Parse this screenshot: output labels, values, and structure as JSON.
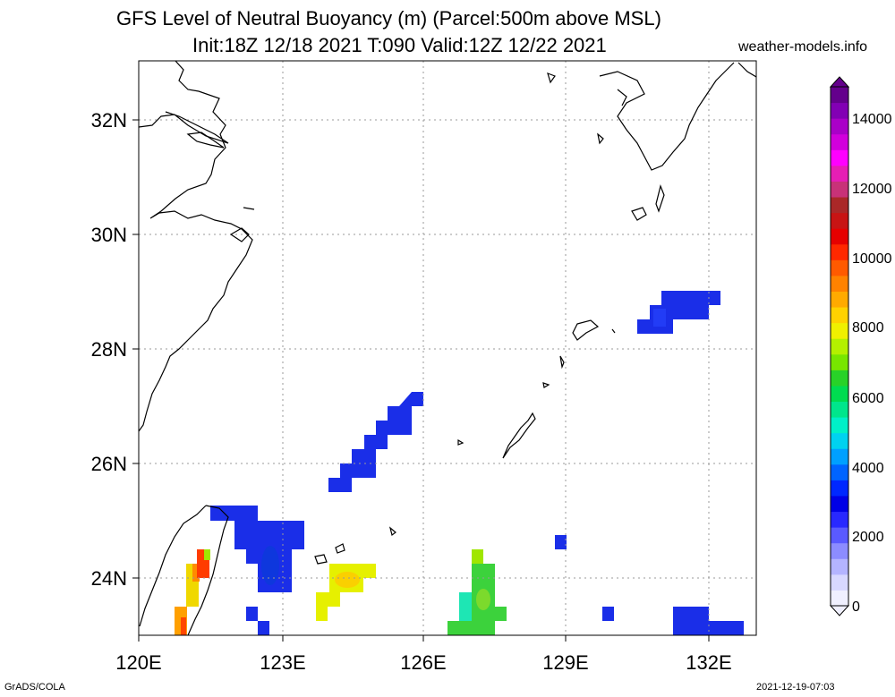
{
  "title_line1": "GFS Level of Neutral Buoyancy (m) (Parcel:500m above MSL)",
  "title_line2": "Init:18Z 12/18 2021 T:090 Valid:12Z 12/22 2021",
  "site": "weather-models.info",
  "footer_left": "GrADS/COLA",
  "footer_right": "2021-12-19-07:03",
  "map": {
    "lon_range": [
      120,
      132.8
    ],
    "lat_range": [
      23,
      32.9
    ],
    "lon_ticks": [
      "120E",
      "123E",
      "126E",
      "129E",
      "132E"
    ],
    "lat_ticks": [
      "24N",
      "26N",
      "28N",
      "30N",
      "32N"
    ],
    "gridlines": true
  },
  "colorbar": {
    "labels": [
      "0",
      "2000",
      "4000",
      "6000",
      "8000",
      "10000",
      "12000",
      "14000"
    ],
    "colors": [
      "#f0f0ff",
      "#d8d8ff",
      "#b4b4ff",
      "#8c8cff",
      "#5a5aff",
      "#2828ff",
      "#0000e6",
      "#0028ff",
      "#0064ff",
      "#00a0ff",
      "#00d2f0",
      "#00f0c8",
      "#00e68c",
      "#00dc50",
      "#28d228",
      "#78e600",
      "#b4f000",
      "#f0f000",
      "#ffd200",
      "#ffaa00",
      "#ff8200",
      "#ff5a00",
      "#ff2800",
      "#e60000",
      "#c81414",
      "#aa2828",
      "#c83278",
      "#e61eb4",
      "#ff00ff",
      "#d200dc",
      "#aa00c8",
      "#8200b4",
      "#64008c"
    ]
  },
  "legend_colors": {
    "blue_low": "#1428e6",
    "blue_mid": "#0a32ff",
    "cyan": "#00d2e6",
    "green": "#1ed21e",
    "lime": "#8ce600",
    "yellow": "#f0f000",
    "orange": "#ffa000",
    "red": "#ff2800"
  }
}
